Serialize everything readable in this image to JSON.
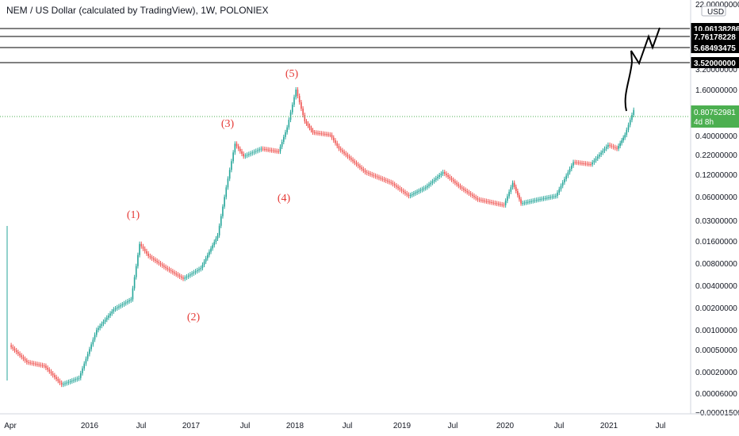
{
  "title": "NEM / US Dollar (calculated by TradingView), 1W, POLONIEX",
  "colors": {
    "up": "#26a69a",
    "down": "#ef5350",
    "wave": "#e53935",
    "line": "#000000",
    "current": "#4caf50"
  },
  "chart_data": {
    "type": "candlestick",
    "symbol": "NEM / US Dollar",
    "interval": "1W",
    "exchange": "POLONIEX",
    "yscale": "log",
    "currency": "USD",
    "current_price": "0.80752981",
    "countdown": "4d 8h",
    "price_ticks": [
      "22.00000000",
      "3.20000000",
      "1.60000000",
      "0.40000000",
      "0.22000000",
      "0.12000000",
      "0.06000000",
      "0.03000000",
      "0.01600000",
      "0.00800000",
      "0.00400000",
      "0.00200000",
      "0.00100000",
      "0.00050000",
      "0.00020000",
      "0.00006000",
      "−0.00001500"
    ],
    "time_ticks": [
      "Apr",
      "2016",
      "Jul",
      "2017",
      "Jul",
      "2018",
      "Jul",
      "2019",
      "Jul",
      "2020",
      "Jul",
      "2021",
      "Jul"
    ],
    "levels": [
      "10.06138286",
      "7.76178228",
      "5.68493475",
      "3.52000000"
    ],
    "wave_labels": [
      "(1)",
      "(2)",
      "(3)",
      "(4)",
      "(5)"
    ],
    "series": [
      {
        "date": "2015-04",
        "close": 0.0003
      },
      {
        "date": "2015-06",
        "close": 0.00017
      },
      {
        "date": "2015-08",
        "close": 0.00015
      },
      {
        "date": "2015-10",
        "close": 8e-05
      },
      {
        "date": "2015-12",
        "close": 0.0001
      },
      {
        "date": "2016-02",
        "close": 0.0005
      },
      {
        "date": "2016-04",
        "close": 0.001
      },
      {
        "date": "2016-06",
        "close": 0.0014
      },
      {
        "date": "2016-07",
        "close": 0.009
      },
      {
        "date": "2016-08",
        "close": 0.006
      },
      {
        "date": "2016-10",
        "close": 0.004
      },
      {
        "date": "2016-12",
        "close": 0.0028
      },
      {
        "date": "2017-02",
        "close": 0.004
      },
      {
        "date": "2017-04",
        "close": 0.012
      },
      {
        "date": "2017-05",
        "close": 0.06
      },
      {
        "date": "2017-06",
        "close": 0.26
      },
      {
        "date": "2017-07",
        "close": 0.17
      },
      {
        "date": "2017-09",
        "close": 0.22
      },
      {
        "date": "2017-11",
        "close": 0.2
      },
      {
        "date": "2017-12",
        "close": 0.45
      },
      {
        "date": "2018-01",
        "close": 1.6
      },
      {
        "date": "2018-02",
        "close": 0.55
      },
      {
        "date": "2018-03",
        "close": 0.38
      },
      {
        "date": "2018-05",
        "close": 0.35
      },
      {
        "date": "2018-06",
        "close": 0.22
      },
      {
        "date": "2018-09",
        "close": 0.1
      },
      {
        "date": "2018-12",
        "close": 0.07
      },
      {
        "date": "2019-02",
        "close": 0.045
      },
      {
        "date": "2019-04",
        "close": 0.06
      },
      {
        "date": "2019-06",
        "close": 0.1
      },
      {
        "date": "2019-08",
        "close": 0.06
      },
      {
        "date": "2019-10",
        "close": 0.04
      },
      {
        "date": "2020-01",
        "close": 0.033
      },
      {
        "date": "2020-02",
        "close": 0.07
      },
      {
        "date": "2020-03",
        "close": 0.035
      },
      {
        "date": "2020-05",
        "close": 0.04
      },
      {
        "date": "2020-07",
        "close": 0.045
      },
      {
        "date": "2020-09",
        "close": 0.14
      },
      {
        "date": "2020-11",
        "close": 0.13
      },
      {
        "date": "2021-01",
        "close": 0.25
      },
      {
        "date": "2021-02",
        "close": 0.22
      },
      {
        "date": "2021-03",
        "close": 0.35
      },
      {
        "date": "2021-04",
        "close": 0.80752981
      }
    ]
  }
}
